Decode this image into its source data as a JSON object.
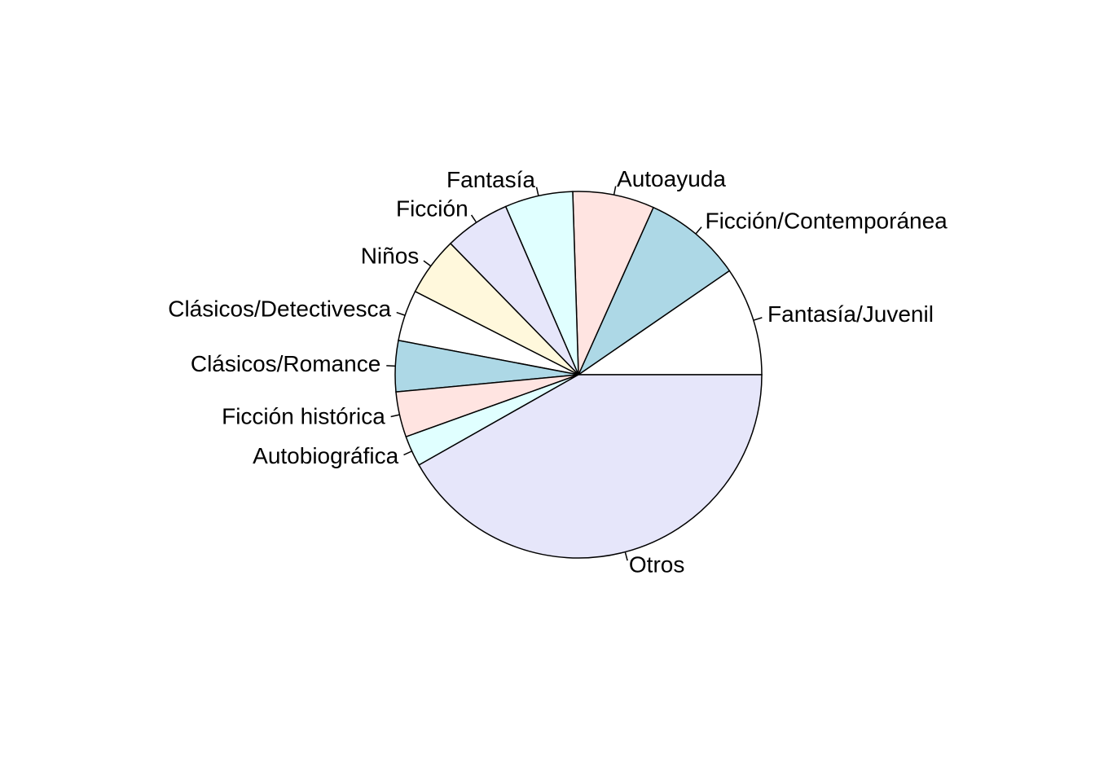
{
  "chart_data": {
    "type": "pie",
    "title": "",
    "start": "anticlockwise from 3 o'clock",
    "categories": [
      "Fantasía/Juvenil",
      "Ficción/Contemporánea",
      "Autoayuda",
      "Fantasía",
      "Ficción",
      "Niños",
      "Clásicos/Detectivesca",
      "Clásicos/Romance",
      "Ficción histórica",
      "Autobiográfica",
      "Otros"
    ],
    "values": [
      9.6,
      8.7,
      7.2,
      6.0,
      5.8,
      5.2,
      4.5,
      4.5,
      4.0,
      2.7,
      41.8
    ],
    "colors": [
      "#ffffff",
      "#add8e6",
      "#ffe4e1",
      "#e0ffff",
      "#e6e6fa",
      "#fff8dc",
      "#ffffff",
      "#add8e6",
      "#ffe4e1",
      "#e0ffff",
      "#e6e6fa"
    ]
  }
}
